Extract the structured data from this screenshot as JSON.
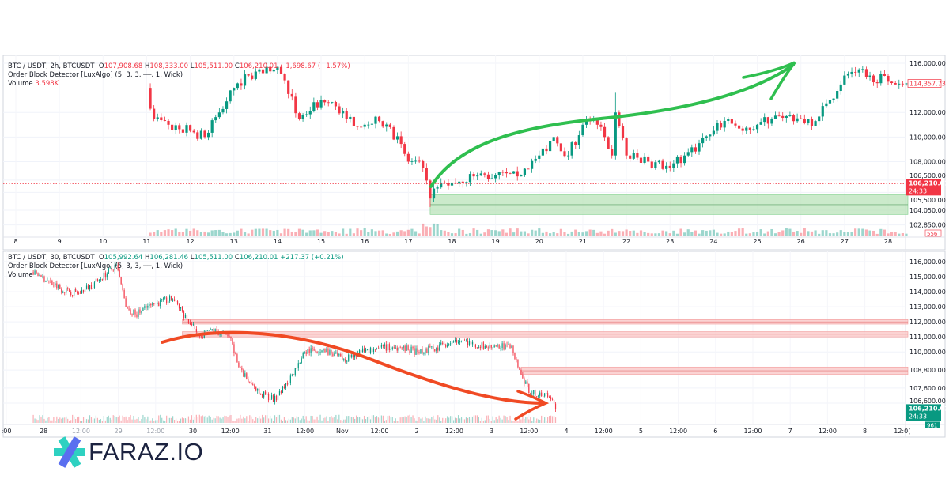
{
  "colors": {
    "up": "#089981",
    "down": "#f23645",
    "bullish_block": "#b9e3b9",
    "bearish_block": "#f9c4c4",
    "arrow_up": "#2fbf4f",
    "arrow_down": "#f04a24",
    "logo_teal": "#2ed1c1",
    "logo_blue": "#5a6ff0"
  },
  "logo": {
    "text": "FARAZ.IO"
  },
  "chart_data": [
    {
      "type": "candlestick",
      "symbol": "BTC / USDT, 2h, BTCUSDT",
      "ohlc": {
        "o_label": "O",
        "o": "107,908.68",
        "h_label": "H",
        "h": "108,333.00",
        "l_label": "L",
        "l": "105,511.00",
        "c_label": "C",
        "c": "106,210.01",
        "change": "−1,698.67 (−1.57%)"
      },
      "indicator": "Order Block Detector [LuxAlgo] (5, 3, 3, ──, 1, Wick)",
      "volume_label": "Volume",
      "volume_value": "3.598K",
      "x_ticks": [
        "8",
        "9",
        "10",
        "11",
        "12",
        "13",
        "14",
        "15",
        "16",
        "17",
        "18",
        "19",
        "20",
        "21",
        "22",
        "23",
        "24",
        "25",
        "26",
        "27",
        "28"
      ],
      "y_ticks": [
        "116,000.00",
        "112,000.00",
        "110,000.00",
        "108,000.00",
        "106,500.00",
        "105,500.00",
        "104,050.00",
        "102,850.00"
      ],
      "ylim": [
        102850,
        116500
      ],
      "last_price": "106,210.01",
      "countdown": "24:33",
      "high_marker": "114,357.73",
      "volume_marker": "556",
      "order_blocks": [
        {
          "kind": "bullish",
          "from": "17 12:00",
          "top": 105300,
          "bottom": 103700,
          "mid": 104500
        }
      ],
      "annotation": "hand-drawn green arrow pointing up",
      "closes": [
        {
          "t": "11 00:00",
          "c": 114000,
          "h": 116400,
          "l": 105700
        },
        {
          "t": "11 04:00",
          "c": 111500
        },
        {
          "t": "11 12:00",
          "c": 111000
        },
        {
          "t": "12 00:00",
          "c": 110500
        },
        {
          "t": "12 08:00",
          "c": 110000
        },
        {
          "t": "12 16:00",
          "c": 112000
        },
        {
          "t": "13 00:00",
          "c": 114000
        },
        {
          "t": "13 08:00",
          "c": 115000
        },
        {
          "t": "13 14:00",
          "c": 115500
        },
        {
          "t": "14 00:00",
          "c": 115700
        },
        {
          "t": "14 06:00",
          "c": 113500
        },
        {
          "t": "14 12:00",
          "c": 111500
        },
        {
          "t": "15 00:00",
          "c": 113000
        },
        {
          "t": "15 08:00",
          "c": 112500
        },
        {
          "t": "15 14:00",
          "c": 111500
        },
        {
          "t": "16 00:00",
          "c": 111000
        },
        {
          "t": "16 08:00",
          "c": 111300
        },
        {
          "t": "16 14:00",
          "c": 110800
        },
        {
          "t": "17 00:00",
          "c": 108000
        },
        {
          "t": "17 08:00",
          "c": 107500
        },
        {
          "t": "17 12:00",
          "c": 105000,
          "l": 104300
        },
        {
          "t": "17 18:00",
          "c": 106300
        },
        {
          "t": "18 00:00",
          "c": 106300
        },
        {
          "t": "18 12:00",
          "c": 106800
        },
        {
          "t": "19 00:00",
          "c": 106900
        },
        {
          "t": "19 12:00",
          "c": 106800
        },
        {
          "t": "20 00:00",
          "c": 108500
        },
        {
          "t": "20 08:00",
          "c": 110000
        },
        {
          "t": "20 16:00",
          "c": 108500
        },
        {
          "t": "21 00:00",
          "c": 111000
        },
        {
          "t": "21 08:00",
          "c": 111000
        },
        {
          "t": "21 12:00",
          "c": 110000
        },
        {
          "t": "21 16:00",
          "c": 108500
        },
        {
          "t": "21 18:00",
          "c": 112000,
          "h": 113600
        },
        {
          "t": "22 00:00",
          "c": 108500
        },
        {
          "t": "22 12:00",
          "c": 108000
        },
        {
          "t": "23 00:00",
          "c": 107500
        },
        {
          "t": "23 08:00",
          "c": 108500
        },
        {
          "t": "23 16:00",
          "c": 109500
        },
        {
          "t": "24 00:00",
          "c": 110500
        },
        {
          "t": "24 08:00",
          "c": 111500
        },
        {
          "t": "24 16:00",
          "c": 110500
        },
        {
          "t": "25 00:00",
          "c": 111000
        },
        {
          "t": "25 08:00",
          "c": 111500
        },
        {
          "t": "25 16:00",
          "c": 111700
        },
        {
          "t": "26 00:00",
          "c": 111500
        },
        {
          "t": "26 08:00",
          "c": 111300
        },
        {
          "t": "26 16:00",
          "c": 113000
        },
        {
          "t": "27 00:00",
          "c": 115000
        },
        {
          "t": "27 08:00",
          "c": 115500
        },
        {
          "t": "27 14:00",
          "c": 115000
        },
        {
          "t": "28 00:00",
          "c": 114500
        },
        {
          "t": "28 10:00",
          "c": 114357.73
        }
      ]
    },
    {
      "type": "candlestick",
      "symbol": "BTC / USDT, 30, BTCUSDT",
      "ohlc": {
        "o_label": "O",
        "o": "105,992.64",
        "h_label": "H",
        "h": "106,281.46",
        "l_label": "L",
        "l": "105,511.00",
        "c_label": "C",
        "c": "106,210.01",
        "change": "+217.37 (+0.21%)"
      },
      "indicator": "Order Block Detector [LuxAlgo] (5, 3, 3, ──, 1, Wick)",
      "volume_label": "Volume",
      "x_ticks": [
        ":00",
        "28",
        "12:00",
        "29",
        "12:00",
        "30",
        "12:00",
        "31",
        "12:00",
        "Nov",
        "12:00",
        "2",
        "12:00",
        "3",
        "12:00",
        "4",
        "12:00",
        "5",
        "12:00",
        "6",
        "12:00",
        "7",
        "12:00",
        "8",
        "12:0("
      ],
      "y_ticks": [
        "116,000.00",
        "115,000.00",
        "114,000.00",
        "113,000.00",
        "112,000.00",
        "111,000.00",
        "110,000.00",
        "108,800.00",
        "107,600.00",
        "106,600.00"
      ],
      "ylim": [
        105500,
        116500
      ],
      "last_price": "106,210.01",
      "countdown": "24:33",
      "volume_marker": "961",
      "order_blocks": [
        {
          "kind": "bearish",
          "from": "Oct 29 21:00",
          "top": 112150,
          "bottom": 111850
        },
        {
          "kind": "bearish",
          "from": "Oct 29 21:00",
          "top": 111350,
          "bottom": 111000
        },
        {
          "kind": "bearish",
          "from": "Nov 3 09:00",
          "top": 109000,
          "bottom": 108500
        }
      ],
      "annotation": "hand-drawn red arrow pointing down",
      "closes": [
        {
          "t": "Oct 27 21:00",
          "c": 115300
        },
        {
          "t": "Oct 28 00:00",
          "c": 115000
        },
        {
          "t": "Oct 28 06:00",
          "c": 114200
        },
        {
          "t": "Oct 28 12:00",
          "c": 113900
        },
        {
          "t": "Oct 28 18:00",
          "c": 114700
        },
        {
          "t": "Oct 29 00:00",
          "c": 115800
        },
        {
          "t": "Oct 29 03:00",
          "c": 113000
        },
        {
          "t": "Oct 29 06:00",
          "c": 112500
        },
        {
          "t": "Oct 29 12:00",
          "c": 113200
        },
        {
          "t": "Oct 29 18:00",
          "c": 113500
        },
        {
          "t": "Oct 30 00:00",
          "c": 111800
        },
        {
          "t": "Oct 30 03:00",
          "c": 111000
        },
        {
          "t": "Oct 30 06:00",
          "c": 111500
        },
        {
          "t": "Oct 30 12:00",
          "c": 111000
        },
        {
          "t": "Oct 30 15:00",
          "c": 109000
        },
        {
          "t": "Oct 30 18:00",
          "c": 108000
        },
        {
          "t": "Oct 30 22:00",
          "c": 107200
        },
        {
          "t": "Oct 31 03:00",
          "c": 106800
        },
        {
          "t": "Oct 31 08:00",
          "c": 108500
        },
        {
          "t": "Oct 31 12:00",
          "c": 110000
        },
        {
          "t": "Oct 31 18:00",
          "c": 110200
        },
        {
          "t": "Nov 1 00:00",
          "c": 109500
        },
        {
          "t": "Nov 1 06:00",
          "c": 110000
        },
        {
          "t": "Nov 1 12:00",
          "c": 110300
        },
        {
          "t": "Nov 1 18:00",
          "c": 110300
        },
        {
          "t": "Nov 2 00:00",
          "c": 110000
        },
        {
          "t": "Nov 2 06:00",
          "c": 110300
        },
        {
          "t": "Nov 2 12:00",
          "c": 110800
        },
        {
          "t": "Nov 2 18:00",
          "c": 110500
        },
        {
          "t": "Nov 3 00:00",
          "c": 110300
        },
        {
          "t": "Nov 3 06:00",
          "c": 110400
        },
        {
          "t": "Nov 3 09:00",
          "c": 108500
        },
        {
          "t": "Nov 3 12:00",
          "c": 107200
        },
        {
          "t": "Nov 3 15:00",
          "c": 107300
        },
        {
          "t": "Nov 3 18:00",
          "c": 107000
        },
        {
          "t": "Nov 3 20:00",
          "c": 106210.01
        }
      ]
    }
  ]
}
